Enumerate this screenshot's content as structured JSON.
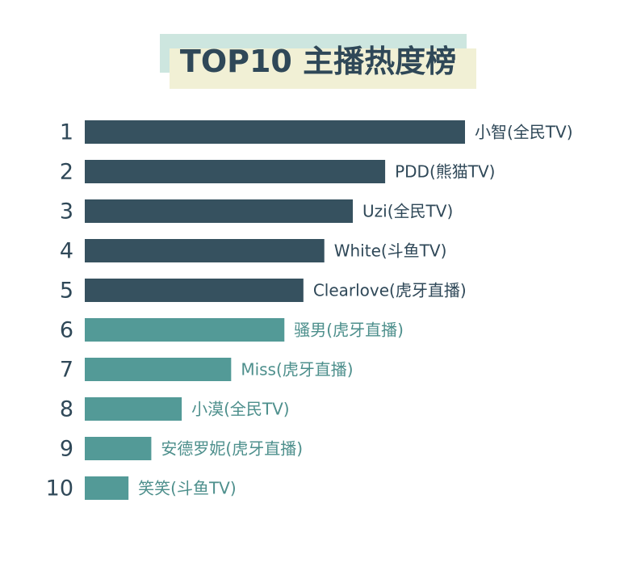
{
  "chart_data": {
    "type": "bar",
    "title": "TOP10 主播热度榜",
    "orientation": "horizontal",
    "categories": [
      "1",
      "2",
      "3",
      "4",
      "5",
      "6",
      "7",
      "8",
      "9",
      "10"
    ],
    "labels": [
      "小智(全民TV)",
      "PDD(熊猫TV)",
      "Uzi(全民TV)",
      "White(斗鱼TV)",
      "Clearlove(虎牙直播)",
      "骚男(虎牙直播)",
      "Miss(虎牙直播)",
      "小漠(全民TV)",
      "安德罗妮(虎牙直播)",
      "笑笑(斗鱼TV)"
    ],
    "values": [
      100,
      79,
      70.5,
      63,
      57.5,
      52.5,
      38.5,
      25.5,
      17.5,
      11.5
    ],
    "xlim": [
      0,
      100
    ],
    "colors": [
      "#36515f",
      "#36515f",
      "#36515f",
      "#36515f",
      "#36515f",
      "#539a97",
      "#539a97",
      "#539a97",
      "#539a97",
      "#539a97"
    ],
    "label_colors": [
      "#2f4858",
      "#2f4858",
      "#2f4858",
      "#2f4858",
      "#2f4858",
      "#4d8f8c",
      "#4d8f8c",
      "#4d8f8c",
      "#4d8f8c",
      "#4d8f8c"
    ],
    "grid": false,
    "legend": "none"
  }
}
